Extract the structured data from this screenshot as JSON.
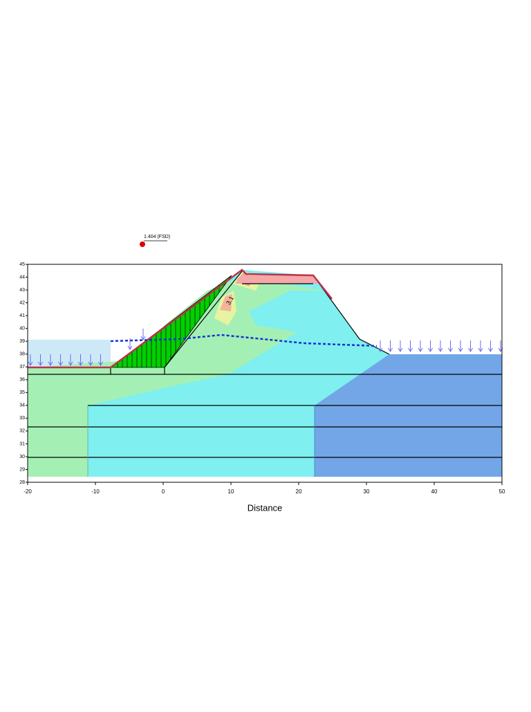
{
  "chart_data": {
    "type": "cross-section",
    "annotation": "1.404 (FSD)",
    "contour_label": "3.1",
    "x_label": "Distance",
    "xlim": [
      -20,
      50
    ],
    "xticks": [
      -20,
      -10,
      0,
      10,
      20,
      30,
      40,
      50
    ],
    "ylim": [
      28,
      45
    ],
    "yticks": [
      28,
      29,
      30,
      31,
      32,
      33,
      34,
      35,
      36,
      37,
      38,
      39,
      40,
      41,
      42,
      43,
      44,
      45
    ]
  }
}
